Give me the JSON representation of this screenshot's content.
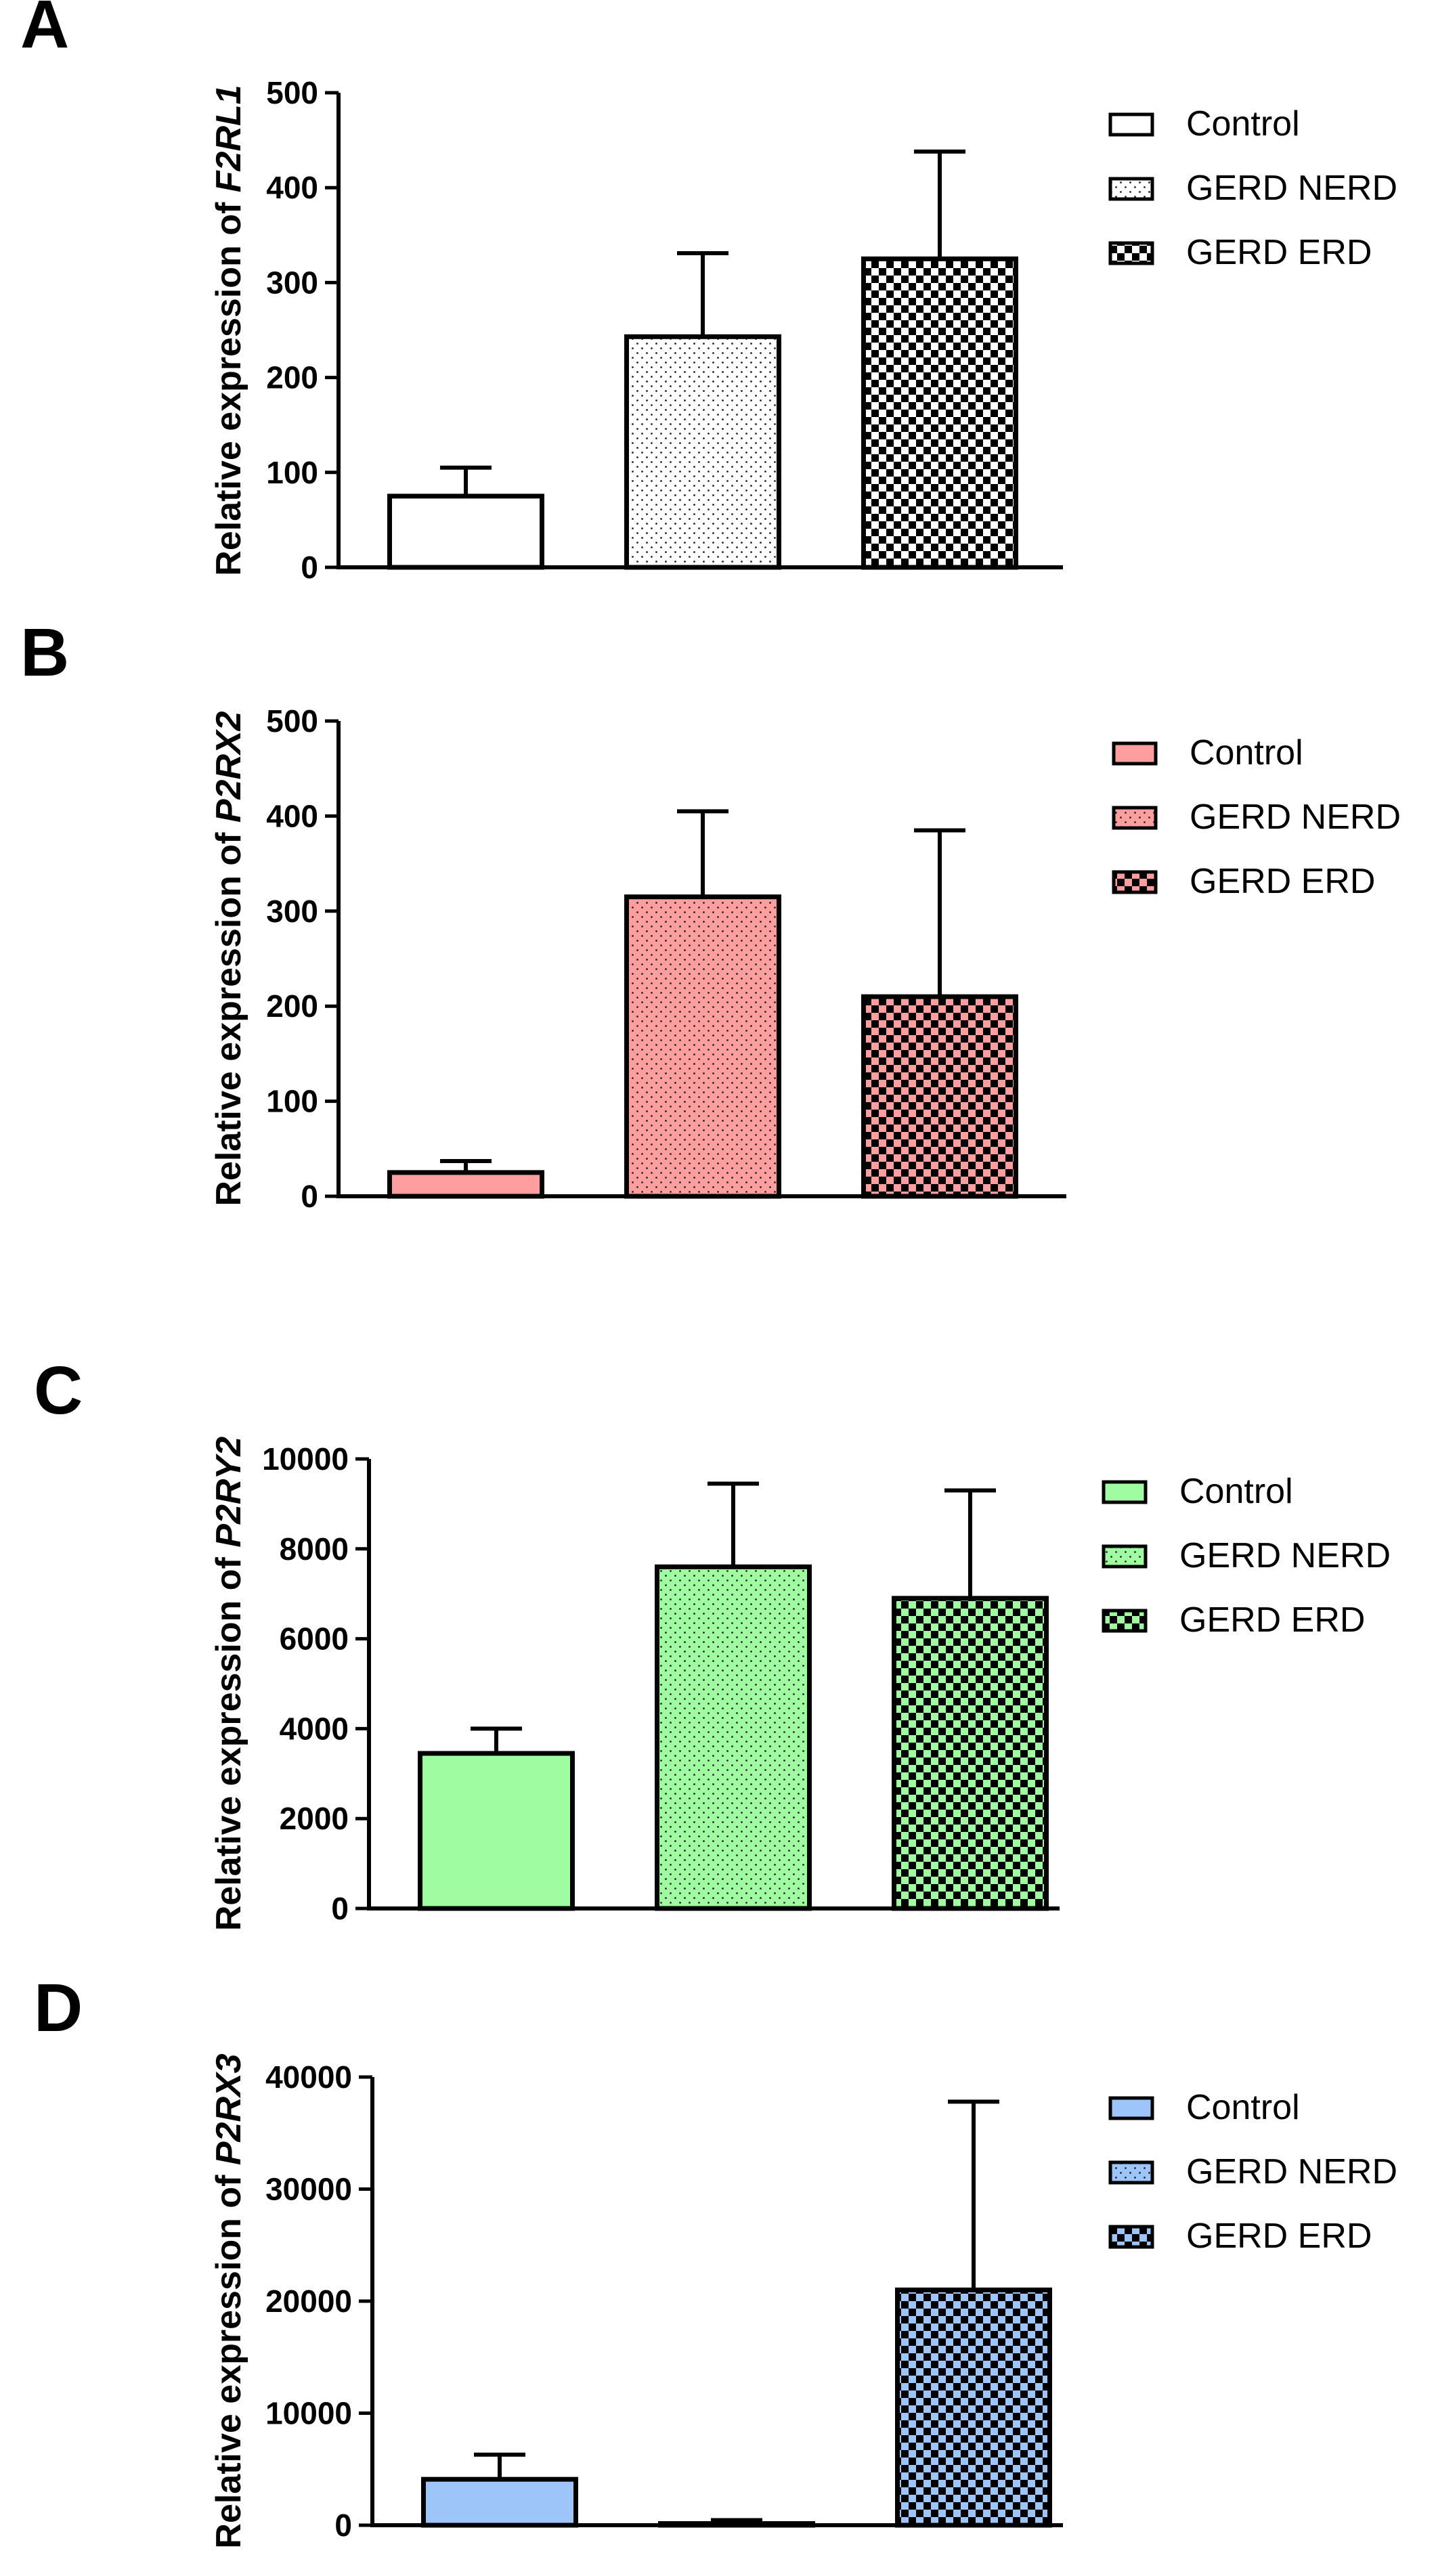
{
  "figure": {
    "panel_letters": [
      "A",
      "B",
      "C",
      "D"
    ]
  },
  "chart_data": [
    {
      "type": "bar",
      "panel": "A",
      "ylabel_prefix": "Relative expression of ",
      "gene": "F2RL1",
      "categories": [
        "Control",
        "GERD NERD",
        "GERD ERD"
      ],
      "values": [
        75,
        243,
        325
      ],
      "errors": [
        30,
        88,
        113
      ],
      "ylim": [
        0,
        500
      ],
      "yticks": [
        0,
        100,
        200,
        300,
        400,
        500
      ],
      "ytick_labels": [
        "0",
        "100",
        "200",
        "300",
        "400",
        "500"
      ],
      "fill": "#ffffff",
      "patterns": [
        "solid",
        "dots",
        "checker"
      ],
      "legend": [
        "Control",
        "GERD NERD",
        "GERD ERD"
      ],
      "legend_position": "right"
    },
    {
      "type": "bar",
      "panel": "B",
      "ylabel_prefix": "Relative expression of ",
      "gene": "P2RX2",
      "categories": [
        "Control",
        "GERD NERD",
        "GERD ERD"
      ],
      "values": [
        25,
        315,
        210
      ],
      "errors": [
        12,
        90,
        175
      ],
      "ylim": [
        0,
        500
      ],
      "yticks": [
        0,
        100,
        200,
        300,
        400,
        500
      ],
      "ytick_labels": [
        "0",
        "100",
        "200",
        "300",
        "400",
        "500"
      ],
      "fill": "#ff9e9e",
      "patterns": [
        "solid",
        "dots",
        "checker"
      ],
      "legend": [
        "Control",
        "GERD NERD",
        "GERD ERD"
      ],
      "legend_position": "right"
    },
    {
      "type": "bar",
      "panel": "C",
      "ylabel_prefix": "Relative expression of ",
      "gene": "P2RY2",
      "categories": [
        "Control",
        "GERD NERD",
        "GERD ERD"
      ],
      "values": [
        3450,
        7600,
        6900
      ],
      "errors": [
        550,
        1850,
        2400
      ],
      "ylim": [
        0,
        10000
      ],
      "yticks": [
        0,
        2000,
        4000,
        6000,
        8000,
        10000
      ],
      "ytick_labels": [
        "0",
        "2000",
        "4000",
        "6000",
        "8000",
        "10000"
      ],
      "fill": "#a0fca0",
      "patterns": [
        "solid",
        "dots",
        "checker"
      ],
      "legend": [
        "Control",
        "GERD NERD",
        "GERD ERD"
      ],
      "legend_position": "right"
    },
    {
      "type": "bar",
      "panel": "D",
      "ylabel_prefix": "Relative expression of ",
      "gene": "P2RX3",
      "categories": [
        "Control",
        "GERD NERD",
        "GERD ERD"
      ],
      "values": [
        4100,
        150,
        21000
      ],
      "errors": [
        2200,
        300,
        16800
      ],
      "ylim": [
        0,
        40000
      ],
      "yticks": [
        0,
        10000,
        20000,
        30000,
        40000
      ],
      "ytick_labels": [
        "0",
        "10000",
        "20000",
        "30000",
        "40000"
      ],
      "fill": "#9ec5fa",
      "patterns": [
        "solid",
        "dots",
        "checker"
      ],
      "legend": [
        "Control",
        "GERD NERD",
        "GERD ERD"
      ],
      "legend_position": "right"
    }
  ]
}
